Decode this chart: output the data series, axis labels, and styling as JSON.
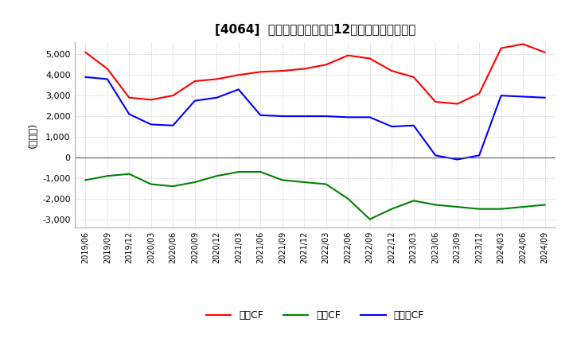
{
  "title": "[4064]  キャッシュフローの12か月移動合計の推移",
  "ylabel": "(百万円)",
  "ylim": [
    -3400,
    5600
  ],
  "yticks": [
    -3000,
    -2000,
    -1000,
    0,
    1000,
    2000,
    3000,
    4000,
    5000
  ],
  "background_color": "#ffffff",
  "plot_bg_color": "#ffffff",
  "grid_color": "#aaaaaa",
  "x_labels": [
    "2019/06",
    "2019/09",
    "2019/12",
    "2020/03",
    "2020/06",
    "2020/09",
    "2020/12",
    "2021/03",
    "2021/06",
    "2021/09",
    "2021/12",
    "2022/03",
    "2022/06",
    "2022/09",
    "2022/12",
    "2023/03",
    "2023/06",
    "2023/09",
    "2023/12",
    "2024/03",
    "2024/06",
    "2024/09"
  ],
  "operating_cf": [
    5100,
    4300,
    2900,
    2800,
    3000,
    3700,
    3800,
    4000,
    4150,
    4200,
    4300,
    4500,
    4950,
    4800,
    4200,
    3900,
    2700,
    2600,
    3100,
    5300,
    5500,
    5100
  ],
  "investing_cf": [
    -1100,
    -900,
    -800,
    -1300,
    -1400,
    -1200,
    -900,
    -700,
    -700,
    -1100,
    -1200,
    -1300,
    -2000,
    -3000,
    -2500,
    -2100,
    -2300,
    -2400,
    -2500,
    -2500,
    -2400,
    -2300
  ],
  "free_cf": [
    3900,
    3800,
    2100,
    1600,
    1550,
    2750,
    2900,
    3300,
    2050,
    2000,
    2000,
    2000,
    1950,
    1950,
    1500,
    1550,
    100,
    -100,
    100,
    3000,
    2950,
    2900
  ],
  "operating_color": "#ff0000",
  "investing_color": "#008000",
  "free_color": "#0000ff",
  "legend_labels": [
    "営業CF",
    "投資CF",
    "フリーCF"
  ]
}
